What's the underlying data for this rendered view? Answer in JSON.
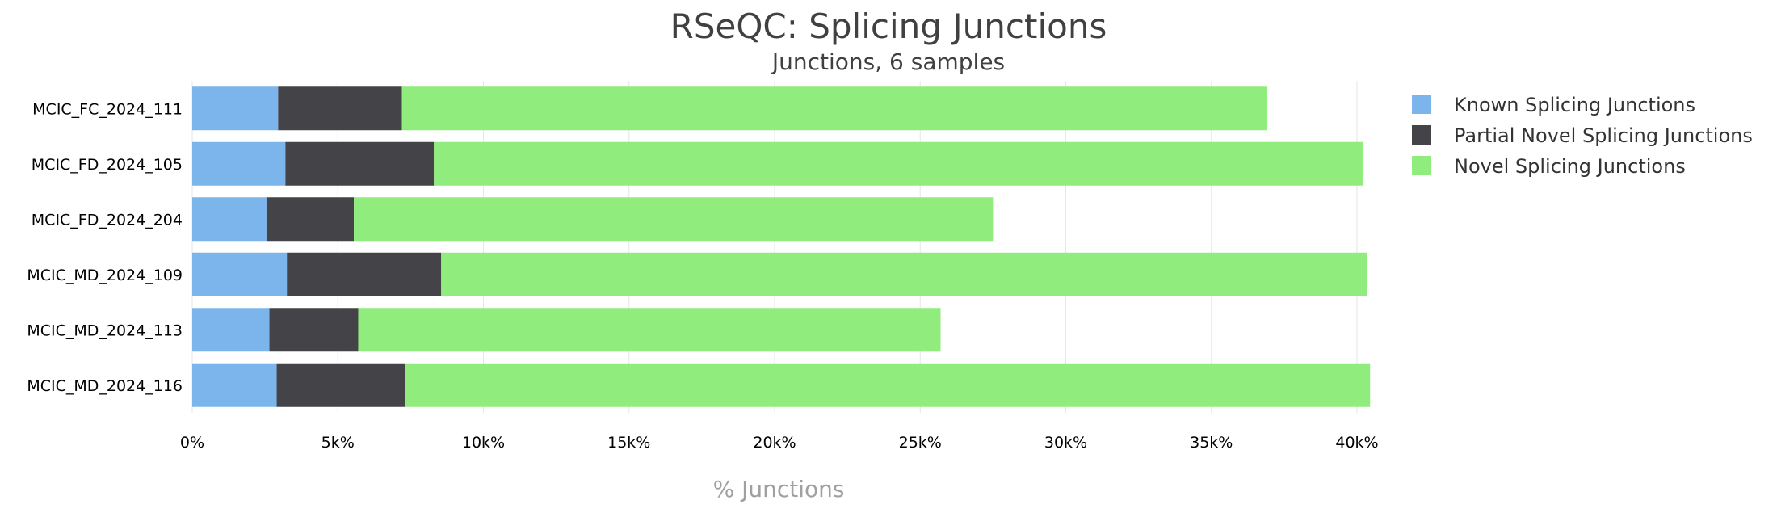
{
  "chart_data": {
    "type": "bar",
    "orientation": "horizontal",
    "stacked": true,
    "title": "RSeQC: Splicing Junctions",
    "subtitle": "Junctions, 6 samples",
    "xlabel": "% Junctions",
    "ylabel": "",
    "xlim": [
      0,
      40000
    ],
    "x_ticks": [
      0,
      5000,
      10000,
      15000,
      20000,
      25000,
      30000,
      35000,
      40000
    ],
    "x_tick_labels": [
      "0%",
      "5k%",
      "10k%",
      "15k%",
      "20k%",
      "25k%",
      "30k%",
      "35k%",
      "40k%"
    ],
    "grid": true,
    "legend_position": "top-right",
    "categories": [
      "MCIC_FC_2024_111",
      "MCIC_FD_2024_105",
      "MCIC_FD_2024_204",
      "MCIC_MD_2024_109",
      "MCIC_MD_2024_113",
      "MCIC_MD_2024_116"
    ],
    "series": [
      {
        "name": "Known Splicing Junctions",
        "color": "#7cb5ec",
        "values": [
          2950,
          3200,
          2550,
          3250,
          2650,
          2900
        ]
      },
      {
        "name": "Partial Novel Splicing Junctions",
        "color": "#434348",
        "values": [
          4250,
          5100,
          3000,
          5300,
          3050,
          4400
        ]
      },
      {
        "name": "Novel Splicing Junctions",
        "color": "#90ed7d",
        "values": [
          29700,
          31900,
          21950,
          31800,
          20000,
          33150
        ]
      }
    ]
  }
}
